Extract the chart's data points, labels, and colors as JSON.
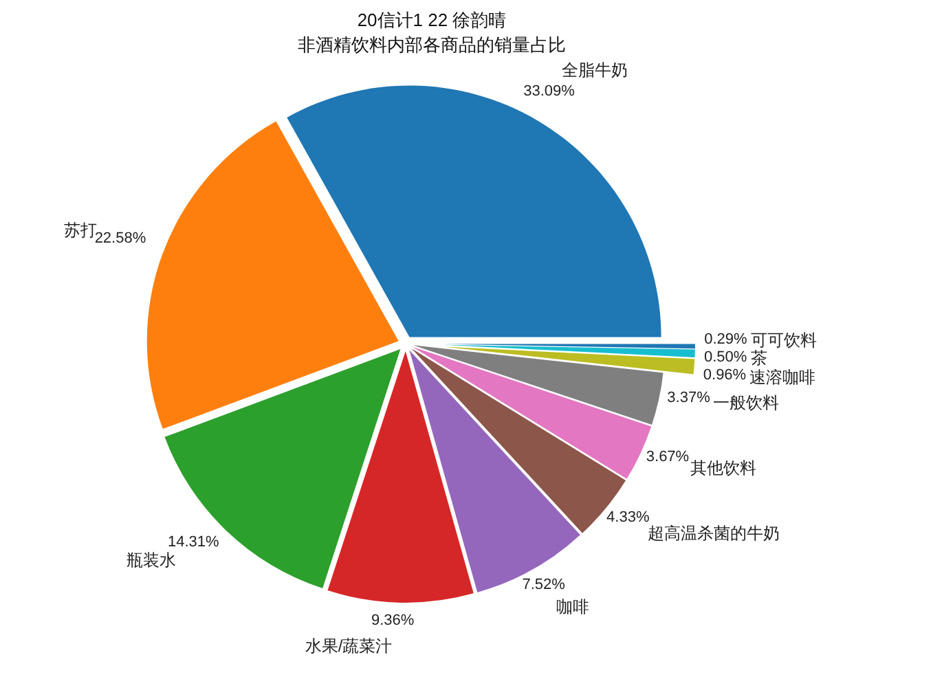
{
  "chart_data": {
    "type": "pie",
    "title": "20信计1 22 徐韵晴",
    "subtitle": "非酒精饮料内部各商品的销量占比",
    "categories": [
      "全脂牛奶",
      "苏打",
      "瓶装水",
      "水果/蔬菜汁",
      "咖啡",
      "超高温杀菌的牛奶",
      "其他饮料",
      "一般饮料",
      "速溶咖啡",
      "茶",
      "可可饮料"
    ],
    "values": [
      33.09,
      22.58,
      14.31,
      9.36,
      7.52,
      4.33,
      3.67,
      3.37,
      0.96,
      0.5,
      0.29
    ],
    "value_labels": [
      "33.09%",
      "22.58%",
      "14.31%",
      "9.36%",
      "7.52%",
      "4.33%",
      "3.67%",
      "3.37%",
      "0.96%",
      "0.50%",
      "0.29%"
    ],
    "colors": [
      "#1f77b4",
      "#ff7f0e",
      "#2ca02c",
      "#d62728",
      "#9467bd",
      "#8c564b",
      "#e377c2",
      "#7f7f7f",
      "#bcbd22",
      "#17becf",
      "#1f77b4"
    ]
  }
}
